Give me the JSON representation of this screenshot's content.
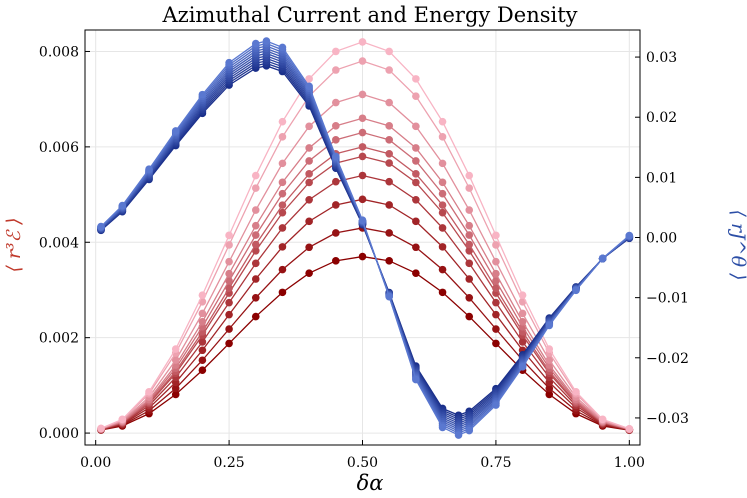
{
  "chart_data": {
    "type": "line",
    "title": "Azimuthal Current and Energy Density",
    "xlabel": "δα",
    "ylabel_left": "⟨ r³ℰ ⟩",
    "ylabel_right": "⟨ rJ^θ ⟩",
    "xlim": [
      -0.02,
      1.02
    ],
    "ylim_left": [
      -0.00025,
      0.00845
    ],
    "ylim_right": [
      -0.0345,
      0.0345
    ],
    "x_ticks": [
      0.0,
      0.25,
      0.5,
      0.75,
      1.0
    ],
    "x_tick_labels": [
      "0.00",
      "0.25",
      "0.50",
      "0.75",
      "1.00"
    ],
    "y_left_ticks": [
      0.0,
      0.002,
      0.004,
      0.006,
      0.008
    ],
    "y_left_tick_labels": [
      "0.000",
      "0.002",
      "0.004",
      "0.006",
      "0.008"
    ],
    "y_right_ticks": [
      0.03,
      0.02,
      0.01,
      0.0,
      -0.01,
      -0.02,
      -0.03
    ],
    "y_right_tick_labels": [
      "0.03",
      "0.02",
      "0.01",
      "0.00",
      "−0.01",
      "−0.02",
      "−0.03"
    ],
    "grid": true,
    "x": [
      0.01,
      0.05,
      0.1,
      0.15,
      0.2,
      0.25,
      0.3,
      0.35,
      0.4,
      0.45,
      0.5,
      0.55,
      0.6,
      0.65,
      0.7,
      0.75,
      0.8,
      0.85,
      0.9,
      0.95,
      1.0
    ],
    "energy_peaks": [
      0.0037,
      0.0043,
      0.0049,
      0.0054,
      0.0058,
      0.006,
      0.0063,
      0.0066,
      0.0071,
      0.0078,
      0.0082
    ],
    "energy_color_dark": "#8b0000",
    "energy_color_light": "#f8b4c4",
    "current_x": [
      0.01,
      0.05,
      0.1,
      0.15,
      0.2,
      0.25,
      0.3,
      0.32,
      0.35,
      0.4,
      0.45,
      0.5,
      0.55,
      0.6,
      0.65,
      0.68,
      0.7,
      0.75,
      0.8,
      0.85,
      0.9,
      0.95,
      1.0
    ],
    "current_center": [
      0.0015,
      0.0048,
      0.0105,
      0.0165,
      0.0222,
      0.0272,
      0.0302,
      0.0306,
      0.0296,
      0.0235,
      0.0125,
      0.0025,
      -0.0095,
      -0.0225,
      -0.03,
      -0.0312,
      -0.0305,
      -0.0265,
      -0.0205,
      -0.014,
      -0.0085,
      -0.0035,
      0.0001
    ],
    "current_spread": 0.003,
    "current_series_count": 11,
    "current_color_dark": "#1a2f8a",
    "current_color_light": "#5a78d0",
    "left_axis_color": "#c0392b",
    "right_axis_color": "#2c4ea6"
  }
}
